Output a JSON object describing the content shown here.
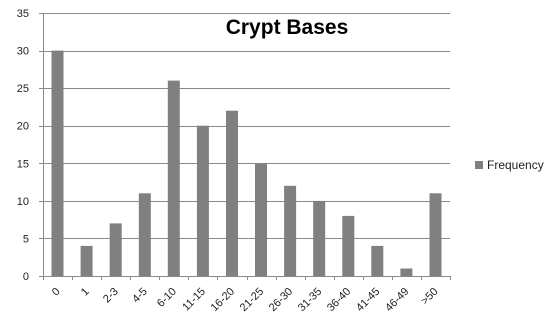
{
  "chart_data": {
    "type": "bar",
    "title": "Crypt Bases",
    "xlabel": "",
    "ylabel": "",
    "categories": [
      "0",
      "1",
      "2-3",
      "4-5",
      "6-10",
      "11-15",
      "16-20",
      "21-25",
      "26-30",
      "31-35",
      "36-40",
      "41-45",
      "46-49",
      ">50"
    ],
    "series": [
      {
        "name": "Frequency",
        "values": [
          30,
          4,
          7,
          11,
          26,
          20,
          22,
          15,
          12,
          10,
          8,
          4,
          1,
          11
        ]
      }
    ],
    "ylim": [
      0,
      35
    ],
    "yticks": [
      0,
      5,
      10,
      15,
      20,
      25,
      30,
      35
    ],
    "grid": true,
    "legend_position": "right",
    "colors": {
      "bar": "#808080",
      "grid": "#8a8a8a",
      "axis": "#8a8a8a"
    }
  }
}
